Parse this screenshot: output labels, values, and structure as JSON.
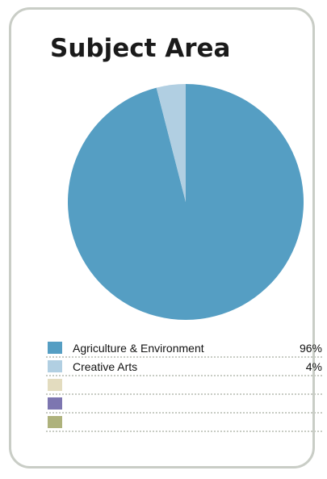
{
  "chart_data": {
    "type": "pie",
    "title": "Subject Area",
    "slices": [
      {
        "label": "Agriculture & Environment",
        "value": 96,
        "value_text": "96%",
        "color": "#559ec3"
      },
      {
        "label": "Creative Arts",
        "value": 4,
        "value_text": "4%",
        "color": "#b1cfe2"
      },
      {
        "label": "",
        "value": 0,
        "value_text": "",
        "color": "#e3dcbf"
      },
      {
        "label": "",
        "value": 0,
        "value_text": "",
        "color": "#7d76b0"
      },
      {
        "label": "",
        "value": 0,
        "value_text": "",
        "color": "#aeb27c"
      }
    ],
    "start_angle": "12 o'clock",
    "direction": "clockwise",
    "legend_position": "bottom"
  },
  "colors": {
    "card_border": "#c9cdc6",
    "divider": "#c8ccc4"
  }
}
